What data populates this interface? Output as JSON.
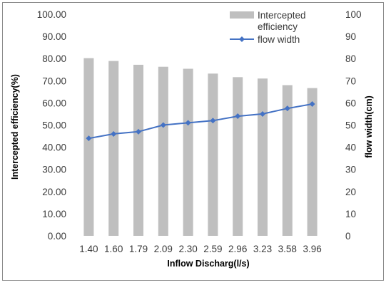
{
  "chart_data": {
    "type": "bar+line",
    "categories": [
      "1.40",
      "1.60",
      "1.79",
      "2.09",
      "2.30",
      "2.59",
      "2.96",
      "3.23",
      "3.58",
      "3.96"
    ],
    "series": [
      {
        "name": "Intercepted efficiency",
        "name_lines": [
          "Intercepted",
          "efficiency"
        ],
        "type": "bar",
        "axis": "left",
        "color": "#BFBFBF",
        "values": [
          80.2,
          78.9,
          77.2,
          76.3,
          75.4,
          73.2,
          71.6,
          71.0,
          68.0,
          66.7
        ]
      },
      {
        "name": "flow width",
        "type": "line",
        "axis": "right",
        "color": "#4472C4",
        "marker": "diamond",
        "values": [
          44,
          46,
          47,
          50,
          51,
          52,
          54,
          55,
          57.5,
          59.5
        ]
      }
    ],
    "xlabel": "Inflow Discharg(l/s)",
    "ylabel": "Intercepted efficiency(%)",
    "y2label": "flow width(cm)",
    "ylim": [
      0,
      100
    ],
    "y2lim": [
      0,
      100
    ],
    "yticks": [
      "0.00",
      "10.00",
      "20.00",
      "30.00",
      "40.00",
      "50.00",
      "60.00",
      "70.00",
      "80.00",
      "90.00",
      "100.00"
    ],
    "y2ticks": [
      "0",
      "10",
      "20",
      "30",
      "40",
      "50",
      "60",
      "70",
      "80",
      "90",
      "100"
    ],
    "grid": false,
    "legend": "top-right"
  }
}
